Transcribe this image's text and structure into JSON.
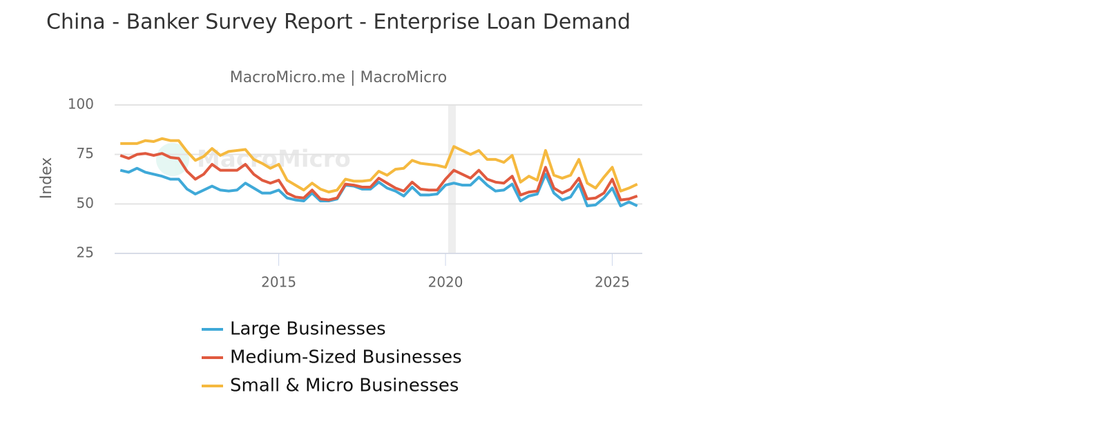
{
  "chart_data": {
    "type": "line",
    "title": "China - Banker Survey Report - Enterprise Loan Demand",
    "subtitle": "MacroMicro.me | MacroMicro",
    "watermark": "MacroMicro",
    "y_label": "Index",
    "x": [
      2010.25,
      2010.5,
      2010.75,
      2011,
      2011.25,
      2011.5,
      2011.75,
      2012,
      2012.25,
      2012.5,
      2012.75,
      2013,
      2013.25,
      2013.5,
      2013.75,
      2014,
      2014.25,
      2014.5,
      2014.75,
      2015,
      2015.25,
      2015.5,
      2015.75,
      2016,
      2016.25,
      2016.5,
      2016.75,
      2017,
      2017.25,
      2017.5,
      2017.75,
      2018,
      2018.25,
      2018.5,
      2018.75,
      2019,
      2019.25,
      2019.5,
      2019.75,
      2020,
      2020.25,
      2020.5,
      2020.75,
      2021,
      2021.25,
      2021.5,
      2021.75,
      2022,
      2022.25,
      2022.5,
      2022.75,
      2023,
      2023.25,
      2023.5,
      2023.75,
      2024,
      2024.25,
      2024.5,
      2024.75,
      2025,
      2025.25,
      2025.5,
      2025.75
    ],
    "series": [
      {
        "name": "Large Businesses",
        "color": "#3fa9d8",
        "values": [
          67,
          66,
          68,
          66,
          65,
          64,
          62.5,
          62.5,
          57.5,
          55,
          57,
          59,
          57,
          56.5,
          57,
          60.5,
          58,
          55.5,
          55.5,
          57,
          53,
          52,
          51.5,
          55.5,
          51.5,
          51.5,
          52.5,
          59.5,
          59,
          57.5,
          57.5,
          61,
          58,
          56.5,
          54,
          58.5,
          54.5,
          54.5,
          55,
          59.5,
          60.5,
          59.5,
          59.5,
          63.5,
          59.5,
          56.5,
          57,
          60,
          51.5,
          54,
          55,
          65,
          55.5,
          52,
          53.5,
          60,
          49,
          49.5,
          53,
          58,
          49,
          51,
          49
        ]
      },
      {
        "name": "Medium-Sized Businesses",
        "color": "#e05a3f",
        "values": [
          74.5,
          73,
          75,
          75.5,
          74.5,
          75.5,
          73.5,
          73,
          66.5,
          62.5,
          65,
          70,
          67,
          67,
          67,
          70,
          65,
          62,
          60.5,
          62,
          55.5,
          53.5,
          53,
          57,
          52.5,
          52,
          53,
          60,
          59.5,
          58.5,
          58.5,
          63,
          60.5,
          58,
          56.5,
          61,
          57.5,
          57,
          57,
          62.5,
          67,
          65,
          63,
          67,
          62.5,
          61,
          60.5,
          64,
          54.5,
          56,
          56.5,
          68.5,
          58,
          55.5,
          57.5,
          63,
          52.5,
          53,
          55.5,
          62.5,
          52,
          52.5,
          54
        ]
      },
      {
        "name": "Small & Micro Businesses",
        "color": "#f5b93f",
        "values": [
          80.5,
          80.5,
          80.5,
          82,
          81.5,
          83,
          82,
          82,
          76.5,
          72,
          74,
          78,
          74.5,
          76.5,
          77,
          77.5,
          72.5,
          70.5,
          68,
          70,
          62,
          59.5,
          57,
          60.5,
          57.5,
          56,
          57,
          62.5,
          61.5,
          61.5,
          62,
          66.5,
          64.5,
          67.5,
          68,
          72,
          70.5,
          70,
          69.5,
          68.5,
          79,
          77,
          75,
          77,
          72.5,
          72.5,
          71,
          74.5,
          61,
          64,
          62,
          77,
          64.5,
          63,
          64.5,
          72.5,
          60.5,
          58,
          63.5,
          68.5,
          56.5,
          58,
          60
        ]
      }
    ],
    "bands": [
      {
        "from": 2020.08,
        "to": 2020.31
      }
    ],
    "xlim": [
      2010.08,
      2025.9
    ],
    "xticks": [
      2015,
      2020,
      2025
    ],
    "ylim": [
      25,
      100
    ],
    "yticks": [
      25,
      50,
      75,
      100
    ],
    "grid": true
  }
}
